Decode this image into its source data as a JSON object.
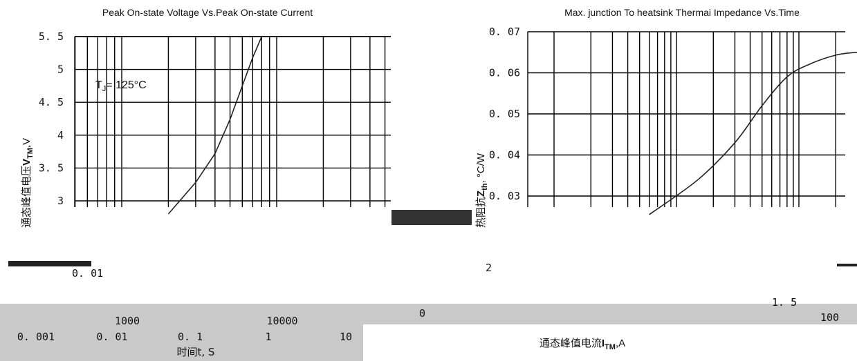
{
  "chart_data": [
    {
      "type": "line",
      "title": "Peak On-state Voltage Vs.Peak On-state Current",
      "ylabel_cn": "通态峰值电压",
      "ylabel_sym": "V",
      "ylabel_sub": "TM",
      "ylabel_unit": ",V",
      "annotation_main": "T",
      "annotation_sub": "J",
      "annotation_rest": "= 125°C",
      "y_ticks": [
        "5. 5",
        "5",
        "4. 5",
        "4",
        "3. 5",
        "3"
      ],
      "y_tick_values": [
        5.5,
        5,
        4.5,
        4,
        3.5,
        3
      ],
      "x_ticks": [
        "1000",
        "10000"
      ],
      "xlabel_cn": "时间t, S",
      "ylim": [
        3,
        5.5
      ],
      "series": [
        {
          "x": [
            2000,
            3000,
            4000,
            5000,
            6000,
            7000,
            8000
          ],
          "y": [
            2.8,
            3.28,
            3.72,
            4.24,
            4.75,
            5.18,
            5.5
          ]
        }
      ]
    },
    {
      "type": "line",
      "title": "Max. junction To heatsink Thermai Impedance Vs.Time",
      "ylabel_cn": "热阻抗",
      "ylabel_sym": "Z",
      "ylabel_sub": "th",
      "ylabel_unit": ", °C/W",
      "y_ticks": [
        "0. 07",
        "0. 06",
        "0. 05",
        "0. 04",
        "0. 03"
      ],
      "y_tick_values": [
        0.07,
        0.06,
        0.05,
        0.04,
        0.03
      ],
      "x_ticks": [
        "0. 001",
        "0. 01",
        "0. 1",
        "1",
        "10"
      ],
      "x_tick_values": [
        0.001,
        0.01,
        0.1,
        1,
        10
      ],
      "xlabel_cn": "通态峰值电流",
      "xlabel_sym": "I",
      "xlabel_sub": "TM",
      "xlabel_unit": ",A",
      "ylim": [
        0.025,
        0.07
      ],
      "series": [
        {
          "x": [
            0.6,
            1.5,
            3,
            5,
            8,
            12,
            20,
            30,
            40
          ],
          "y": [
            0.0255,
            0.034,
            0.043,
            0.052,
            0.059,
            0.062,
            0.0643,
            0.065,
            0.065
          ]
        }
      ]
    }
  ],
  "fragments": {
    "left_mid_tick": "0. 01",
    "bottom_zero": "0",
    "bottom_mid": "2",
    "bottom_right_tick": "1. 5",
    "bottom_far_right": "100"
  }
}
